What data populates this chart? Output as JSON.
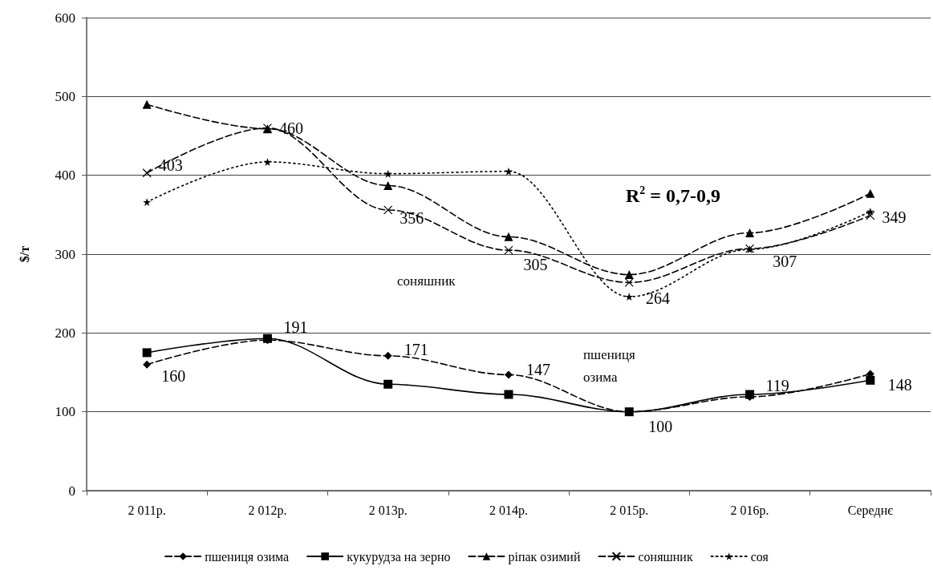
{
  "chart_data": {
    "type": "line",
    "ylabel": "$/т",
    "categories": [
      "2 011р.",
      "2 012р.",
      "2 013р.",
      "2 014р.",
      "2 015р.",
      "2 016р.",
      "Середнє"
    ],
    "series": [
      {
        "name": "пшениця озима",
        "color": "#000000",
        "marker": "diamond",
        "line_style": "dashed",
        "values": [
          160,
          191,
          171,
          147,
          100,
          119,
          148
        ],
        "value_labels": [
          "160",
          "191",
          "171",
          "147",
          "100",
          "119",
          "148"
        ]
      },
      {
        "name": "кукурудза на зерно",
        "color": "#000000",
        "marker": "square",
        "line_style": "solid",
        "values": [
          175,
          193,
          135,
          122,
          100,
          122,
          140
        ]
      },
      {
        "name": "ріпак озимий",
        "color": "#000000",
        "marker": "triangle",
        "line_style": "dashed",
        "values": [
          490,
          459,
          387,
          322,
          274,
          327,
          377
        ]
      },
      {
        "name": "соняшник",
        "color": "#000000",
        "marker": "cross",
        "line_style": "dashed",
        "values": [
          403,
          460,
          356,
          305,
          264,
          307,
          349
        ],
        "value_labels": [
          "403",
          "460",
          "356",
          "305",
          "264",
          "307",
          "349"
        ]
      },
      {
        "name": "соя",
        "color": "#000000",
        "marker": "star",
        "line_style": "dotted",
        "values": [
          366,
          417,
          402,
          405,
          246,
          306,
          354
        ]
      }
    ],
    "ylim": [
      0,
      600
    ],
    "yticks": [
      0,
      100,
      200,
      300,
      400,
      500,
      600
    ],
    "grid": "y",
    "legend": "bottom",
    "annotations": [
      "R$^{2}$ = 0,7-0,9",
      "соняшник",
      "пшениця\nозима"
    ]
  }
}
